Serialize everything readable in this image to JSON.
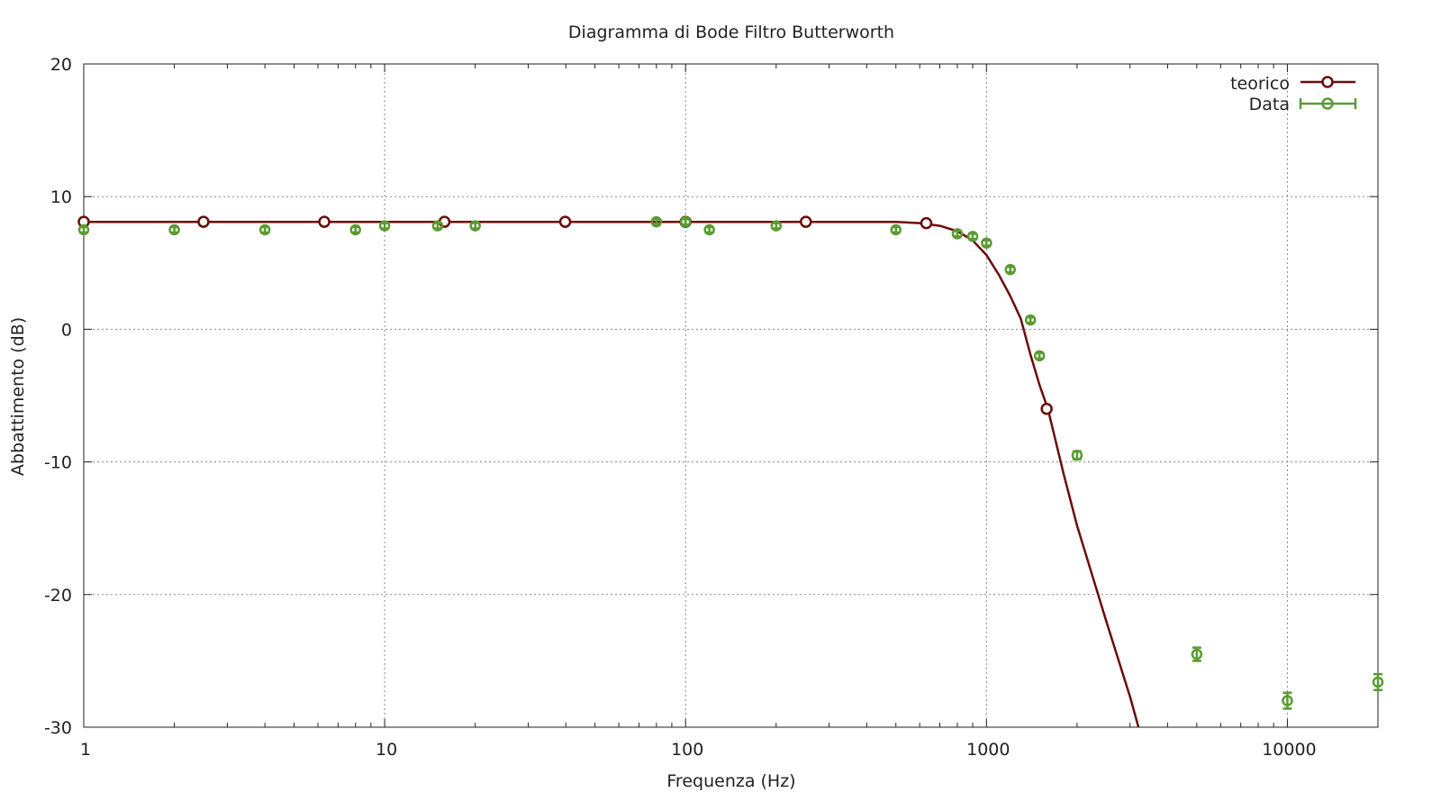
{
  "chart_data": {
    "type": "line",
    "title": "Diagramma di Bode Filtro Butterworth",
    "xlabel": "Frequenza (Hz)",
    "ylabel": "Abbattimento (dB)",
    "x_scale": "log",
    "xlim": [
      1,
      20000
    ],
    "ylim": [
      -30,
      20
    ],
    "x_ticks": [
      1,
      10,
      100,
      1000,
      10000
    ],
    "x_tick_labels": [
      "1",
      "10",
      "100",
      "1000",
      "10000"
    ],
    "y_ticks": [
      -30,
      -20,
      -10,
      0,
      10,
      20
    ],
    "y_tick_labels": [
      "-30",
      "-20",
      "-10",
      "0",
      "10",
      "20"
    ],
    "grid": true,
    "legend_position": "top-right",
    "series": [
      {
        "name": "teorico",
        "style": "line with circle markers",
        "color": "#6b0b0b",
        "curve": {
          "x": [
            1,
            10,
            100,
            300,
            500,
            600,
            700,
            800,
            900,
            1000,
            1100,
            1200,
            1300,
            1400,
            1500,
            1600,
            1800,
            2000,
            2500,
            3000,
            3200
          ],
          "y": [
            8.1,
            8.1,
            8.1,
            8.1,
            8.1,
            8.0,
            7.8,
            7.4,
            6.7,
            5.6,
            4.1,
            2.5,
            0.8,
            -1.9,
            -4.2,
            -6.0,
            -10.8,
            -14.8,
            -22.0,
            -27.7,
            -30.0
          ]
        },
        "markers": {
          "x": [
            1,
            2.5,
            6.3,
            15.8,
            39.8,
            100,
            251,
            631,
            1585
          ],
          "y": [
            8.1,
            8.1,
            8.1,
            8.1,
            8.1,
            8.1,
            8.1,
            8.0,
            -6.0
          ]
        }
      },
      {
        "name": "Data",
        "style": "points with error bars",
        "color": "#5a9b32",
        "x": [
          1,
          2,
          4,
          8,
          10,
          15,
          20,
          80,
          100,
          120,
          200,
          500,
          800,
          900,
          1000,
          1200,
          1400,
          1500,
          2000,
          5000,
          10000,
          20000
        ],
        "y": [
          7.5,
          7.5,
          7.5,
          7.5,
          7.8,
          7.8,
          7.8,
          8.1,
          8.1,
          7.5,
          7.8,
          7.5,
          7.2,
          7.0,
          6.5,
          4.5,
          0.7,
          -2.0,
          -9.5,
          -24.5,
          -28.0,
          -26.6
        ],
        "error": [
          0.2,
          0.2,
          0.2,
          0.2,
          0.2,
          0.2,
          0.2,
          0.2,
          0.2,
          0.2,
          0.2,
          0.2,
          0.2,
          0.2,
          0.2,
          0.2,
          0.2,
          0.2,
          0.3,
          0.5,
          0.6,
          0.6
        ]
      }
    ]
  }
}
